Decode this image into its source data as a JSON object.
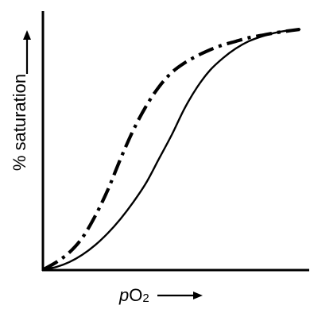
{
  "chart_data": {
    "type": "line",
    "title": "",
    "xlabel": "pO2",
    "xlabel_main": "p",
    "xlabel_rest": "O",
    "xlabel_sub": "2",
    "ylabel": "% saturation",
    "xlim": [
      0,
      100
    ],
    "ylim": [
      0,
      100
    ],
    "grid": false,
    "legend": "none",
    "ticks": "none",
    "series": [
      {
        "style": "solid",
        "color": "#000000",
        "x": [
          0,
          5,
          10,
          15,
          20,
          25,
          30,
          35,
          40,
          45,
          50,
          55,
          60,
          65,
          70,
          75,
          80,
          85,
          90,
          95,
          100
        ],
        "y": [
          0,
          1,
          3,
          6,
          10,
          15,
          21,
          28,
          36,
          46,
          56,
          67,
          76,
          83,
          88,
          92,
          95,
          97,
          98.5,
          99.5,
          100
        ]
      },
      {
        "style": "dash-dot",
        "color": "#000000",
        "x": [
          0,
          5,
          10,
          15,
          20,
          25,
          30,
          35,
          40,
          45,
          50,
          55,
          60,
          65,
          70,
          75,
          80,
          85,
          90,
          95,
          100
        ],
        "y": [
          0,
          3,
          7,
          13,
          22,
          33,
          46,
          58,
          68,
          76,
          82,
          86,
          89,
          91.5,
          93.5,
          95,
          96.5,
          97.5,
          98.5,
          99.3,
          100
        ]
      }
    ]
  }
}
